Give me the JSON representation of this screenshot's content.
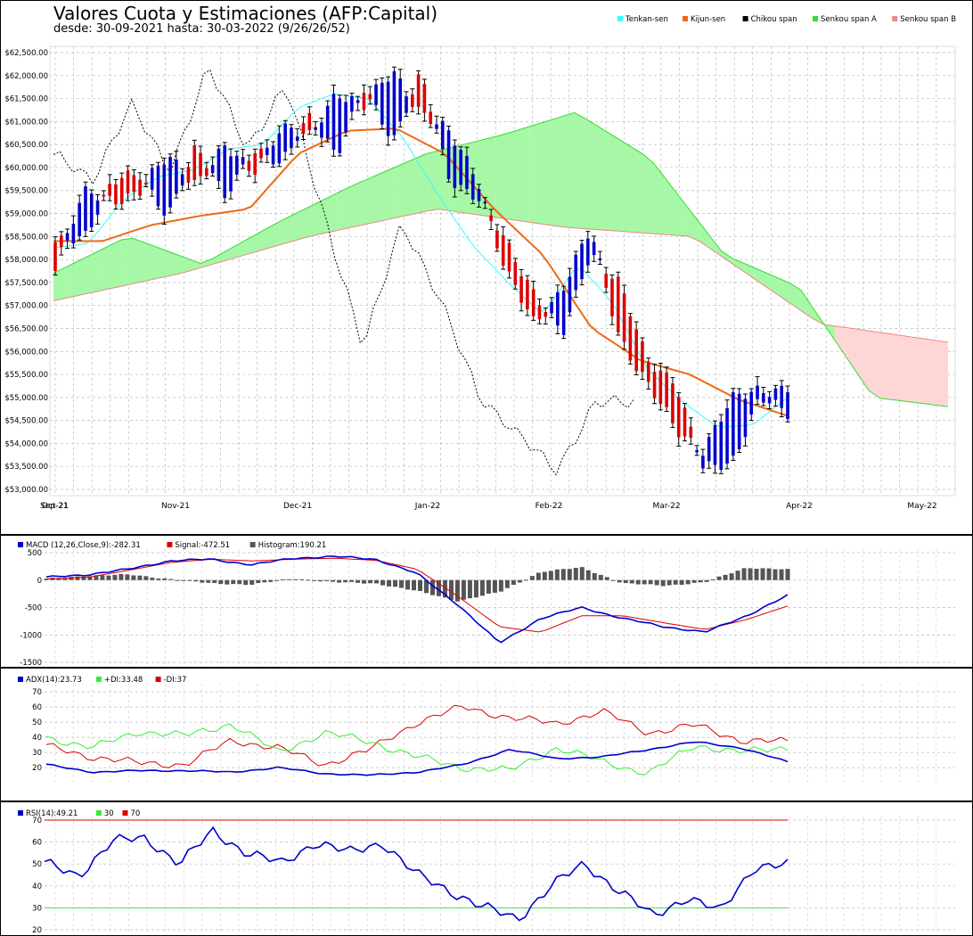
{
  "header": {
    "title": "Valores Cuota y Estimaciones (AFP:Capital)",
    "subtitle": "desde: 30-09-2021 hasta: 30-03-2022 (9/26/26/52)"
  },
  "colors": {
    "up": "#0000cc",
    "down": "#dd0000",
    "tenkan": "#33ffff",
    "kijun": "#ee6a15",
    "chikou": "#000000",
    "spanA": "#33dd33",
    "spanB": "#ee8888",
    "bullCloud": "#a6f7a6",
    "bearCloud": "#ffd6d6",
    "grid": "#bbbbbb"
  },
  "legend_main": [
    {
      "label": "Tenkan-sen",
      "color": "#33ffff"
    },
    {
      "label": "Kijun-sen",
      "color": "#ee6a15"
    },
    {
      "label": "Chikou span",
      "color": "#000000"
    },
    {
      "label": "Senkou span A",
      "color": "#33dd33"
    },
    {
      "label": "Senkou span B",
      "color": "#ee8888"
    }
  ],
  "macd_legend": [
    {
      "label": "MACD (12,26,Close,9):-282.31",
      "color": "#0000cc"
    },
    {
      "label": "Signal:-472.51",
      "color": "#dd0000"
    },
    {
      "label": "Histogram:190.21",
      "color": "#555555"
    }
  ],
  "adx_legend": [
    {
      "label": "ADX(14):23.73",
      "color": "#0000cc"
    },
    {
      "label": "+DI:33.48",
      "color": "#33ee33"
    },
    {
      "label": "-DI:37",
      "color": "#dd0000"
    }
  ],
  "rsi_legend": [
    {
      "label": "RSI(14):49.21",
      "color": "#0000cc"
    },
    {
      "label": "30",
      "color": "#33ee33"
    },
    {
      "label": "70",
      "color": "#dd0000"
    }
  ],
  "chart_data": [
    {
      "type": "candlestick",
      "title": "Valores Cuota y Estimaciones (AFP:Capital)",
      "ylim": [
        53000,
        62500
      ],
      "y_ticks": [
        "$53,000.00",
        "$53,500.00",
        "$54,000.00",
        "$54,500.00",
        "$55,000.00",
        "$55,500.00",
        "$56,000.00",
        "$56,500.00",
        "$57,000.00",
        "$57,500.00",
        "$58,000.00",
        "$58,500.00",
        "$59,000.00",
        "$59,500.00",
        "$60,000.00",
        "$60,500.00",
        "$61,000.00",
        "$61,500.00",
        "$62,000.00",
        "$62,500.00"
      ],
      "x_ticks": [
        "Sep-21",
        "Oct-21",
        "Nov-21",
        "Dec-21",
        "Jan-22",
        "Feb-22",
        "Mar-22",
        "Apr-22",
        "May-22"
      ],
      "anchors": [
        [
          58300,
          57900
        ],
        [
          58500,
          59400
        ],
        [
          59700,
          59300
        ],
        [
          59800,
          59500
        ],
        [
          59000,
          60200
        ],
        [
          60400,
          59700
        ],
        [
          59400,
          60400
        ],
        [
          60400,
          59900
        ],
        [
          60000,
          60900
        ],
        [
          61200,
          60600
        ],
        [
          60200,
          61700
        ],
        [
          61800,
          61300
        ],
        [
          60600,
          62100
        ],
        [
          62000,
          61200
        ],
        [
          59800,
          60700
        ],
        [
          59300,
          59800
        ],
        [
          58400,
          57700
        ],
        [
          57300,
          56600
        ],
        [
          56300,
          57400
        ],
        [
          58200,
          58600
        ],
        [
          57500,
          56400
        ],
        [
          55800,
          55300
        ],
        [
          55400,
          54300
        ],
        [
          53400,
          53900
        ],
        [
          53600,
          54900
        ],
        [
          55000,
          55200
        ],
        [
          54600,
          55200
        ]
      ],
      "tenkan": [
        58250,
        58350,
        59300,
        59800,
        59950,
        60400,
        60500,
        61300,
        61600,
        61500,
        60650,
        59400,
        58300,
        57500,
        56800,
        57900,
        57050,
        55600,
        54900,
        54350,
        54400,
        55000
      ],
      "kijun": [
        58400,
        58400,
        58750,
        58950,
        59100,
        60300,
        60800,
        60850,
        60300,
        59100,
        58100,
        56500,
        55800,
        55500,
        54950,
        54600
      ],
      "chikou": [
        60200,
        59800,
        61300,
        60000,
        62100,
        60500,
        61700,
        59000,
        56000,
        58900,
        57000,
        55100,
        54100,
        53500,
        54800,
        55000
      ],
      "spanA": [
        57700,
        58500,
        57900,
        58800,
        59600,
        60300,
        60700,
        61200,
        60200,
        58100,
        57400,
        55000,
        54800
      ],
      "spanB": [
        57100,
        57700,
        58500,
        59100,
        58700,
        58500,
        56600,
        56200
      ]
    },
    {
      "type": "line+bar",
      "name": "MACD (12,26,Close,9)",
      "ylim": [
        -1500,
        500
      ],
      "y_ticks": [
        "500",
        "0",
        "-500",
        "-1000",
        "-1500"
      ],
      "macd": [
        50,
        100,
        200,
        350,
        380,
        280,
        400,
        430,
        380,
        120,
        -450,
        -1150,
        -700,
        -500,
        -700,
        -850,
        -950,
        -650,
        -282
      ],
      "signal": [
        20,
        50,
        180,
        320,
        380,
        350,
        380,
        400,
        360,
        200,
        -300,
        -850,
        -950,
        -650,
        -650,
        -780,
        -900,
        -720,
        -472
      ],
      "histogram": [
        20,
        80,
        100,
        20,
        -60,
        -80,
        30,
        -40,
        -60,
        -200,
        -380,
        -220,
        150,
        230,
        -60,
        -100,
        -40,
        230,
        190
      ]
    },
    {
      "type": "line",
      "name": "ADX(14)",
      "ylim": [
        10,
        70
      ],
      "y_ticks": [
        "20",
        "30",
        "40",
        "50",
        "60",
        "70"
      ],
      "adx": [
        22,
        17,
        18,
        18,
        17,
        20,
        16,
        15,
        17,
        22,
        32,
        26,
        27,
        32,
        37,
        33,
        23.73
      ],
      "plus_di": [
        40,
        33,
        44,
        41,
        49,
        30,
        43,
        37,
        27,
        20,
        18,
        33,
        24,
        16,
        35,
        30,
        33.48
      ],
      "minus_di": [
        34,
        27,
        23,
        22,
        38,
        33,
        22,
        32,
        50,
        60,
        53,
        49,
        57,
        43,
        48,
        38,
        37
      ]
    },
    {
      "type": "line",
      "name": "RSI(14)",
      "ylim": [
        20,
        70
      ],
      "y_ticks": [
        "20",
        "30",
        "40",
        "50",
        "60",
        "70"
      ],
      "rsi": [
        50,
        45,
        60,
        62,
        50,
        65,
        55,
        50,
        60,
        55,
        60,
        45,
        38,
        30,
        25,
        40,
        50,
        38,
        26,
        35,
        28,
        49,
        49.21
      ],
      "lines": [
        30,
        70
      ]
    }
  ]
}
